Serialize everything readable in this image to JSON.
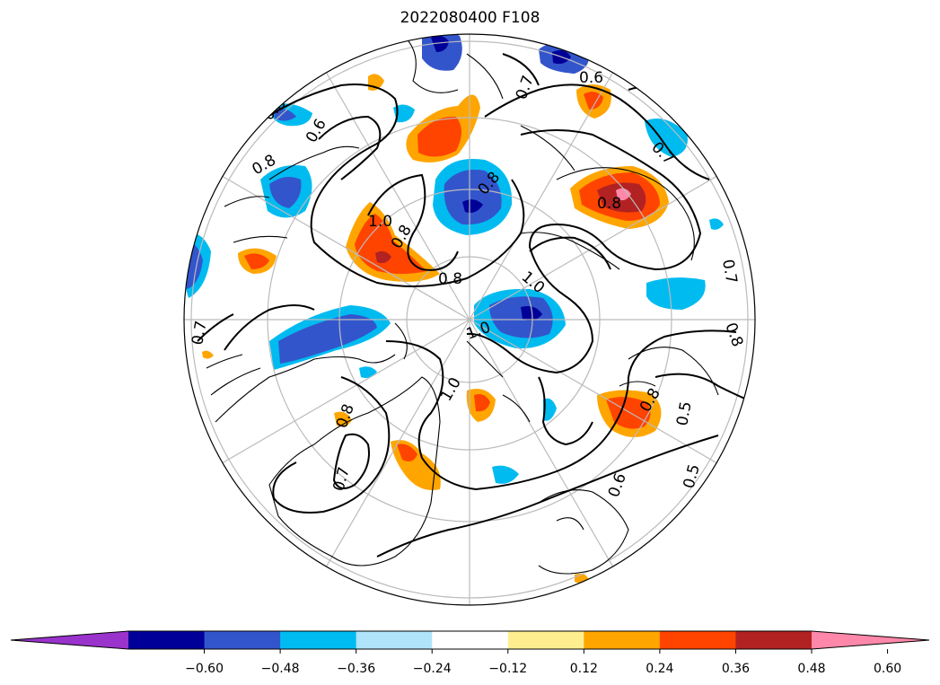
{
  "title": "2022080400 F108",
  "colorbar": {
    "colors": [
      "#9933cc",
      "#000099",
      "#3355cc",
      "#00bbf0",
      "#b0e4fa",
      "#ffffff",
      "#ffee90",
      "#ffa500",
      "#ff4400",
      "#b22222",
      "#ff88aa"
    ],
    "tick_labels": [
      "−0.60",
      "−0.48",
      "−0.36",
      "−0.24",
      "−0.12",
      "0.12",
      "0.24",
      "0.36",
      "0.48",
      "0.60"
    ],
    "extend": "both"
  },
  "contour_labels": [
    "0.6",
    "0.6",
    "0.7",
    "0.8",
    "0.8",
    "1.0",
    "0.8",
    "0.8",
    "1.0",
    "1.0",
    "0.8",
    "0.7",
    "0.8",
    "0.7",
    "0.7",
    "0.8",
    "0.7",
    "0.5",
    "0.5",
    "0.6",
    "0.8",
    "0.8",
    "1.0"
  ],
  "map": {
    "projection": "north-polar-stereographic",
    "graticule": "on",
    "coastlines": "on"
  }
}
